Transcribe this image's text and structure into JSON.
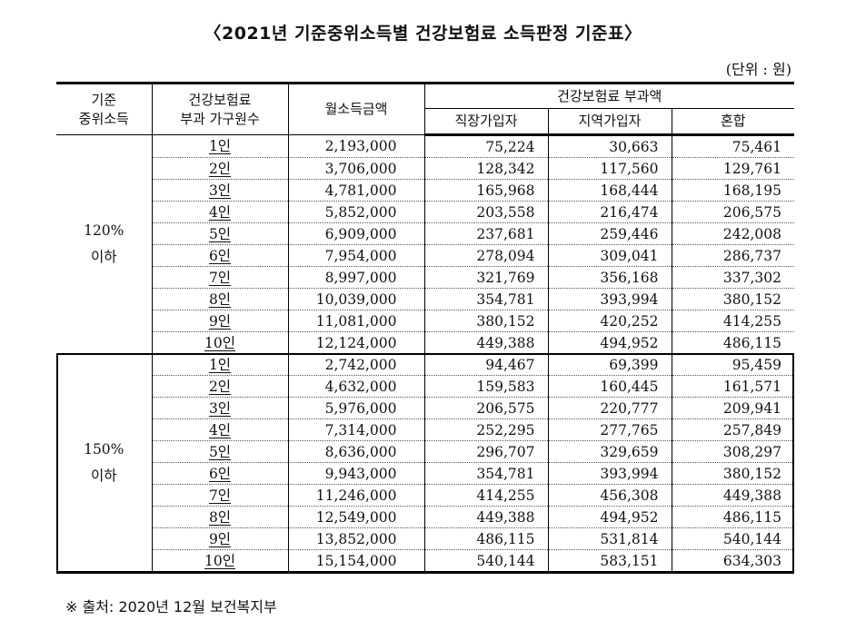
{
  "title": "〈2021년 기준중위소득별 건강보험료 소득판정 기준표〉",
  "unit": "(단위 : 원)",
  "headers": {
    "median_income": [
      "기준",
      "중위소득"
    ],
    "household": [
      "건강보험료",
      "부과 가구원수"
    ],
    "monthly_income": "월소득금액",
    "premium_group": "건강보험료 부과액",
    "employee": "직장가입자",
    "regional": "지역가입자",
    "mixed": "혼합"
  },
  "groups": [
    {
      "label": [
        "120%",
        "이하"
      ],
      "rows": [
        [
          "1인",
          "2,193,000",
          "75,224",
          "30,663",
          "75,461"
        ],
        [
          "2인",
          "3,706,000",
          "128,342",
          "117,560",
          "129,761"
        ],
        [
          "3인",
          "4,781,000",
          "165,968",
          "168,444",
          "168,195"
        ],
        [
          "4인",
          "5,852,000",
          "203,558",
          "216,474",
          "206,575"
        ],
        [
          "5인",
          "6,909,000",
          "237,681",
          "259,446",
          "242,008"
        ],
        [
          "6인",
          "7,954,000",
          "278,094",
          "309,041",
          "286,737"
        ],
        [
          "7인",
          "8,997,000",
          "321,769",
          "356,168",
          "337,302"
        ],
        [
          "8인",
          "10,039,000",
          "354,781",
          "393,994",
          "380,152"
        ],
        [
          "9인",
          "11,081,000",
          "380,152",
          "420,252",
          "414,255"
        ],
        [
          "10인",
          "12,124,000",
          "449,388",
          "494,952",
          "486,115"
        ]
      ]
    },
    {
      "label": [
        "150%",
        "이하"
      ],
      "rows": [
        [
          "1인",
          "2,742,000",
          "94,467",
          "69,399",
          "95,459"
        ],
        [
          "2인",
          "4,632,000",
          "159,583",
          "160,445",
          "161,571"
        ],
        [
          "3인",
          "5,976,000",
          "206,575",
          "220,777",
          "209,941"
        ],
        [
          "4인",
          "7,314,000",
          "252,295",
          "277,765",
          "257,849"
        ],
        [
          "5인",
          "8,636,000",
          "296,707",
          "329,659",
          "308,297"
        ],
        [
          "6인",
          "9,943,000",
          "354,781",
          "393,994",
          "380,152"
        ],
        [
          "7인",
          "11,246,000",
          "414,255",
          "456,308",
          "449,388"
        ],
        [
          "8인",
          "12,549,000",
          "449,388",
          "494,952",
          "486,115"
        ],
        [
          "9인",
          "13,852,000",
          "486,115",
          "531,814",
          "540,144"
        ],
        [
          "10인",
          "15,154,000",
          "540,144",
          "583,151",
          "634,303"
        ]
      ]
    }
  ],
  "source": "※ 출처: 2020년 12월 보건복지부"
}
